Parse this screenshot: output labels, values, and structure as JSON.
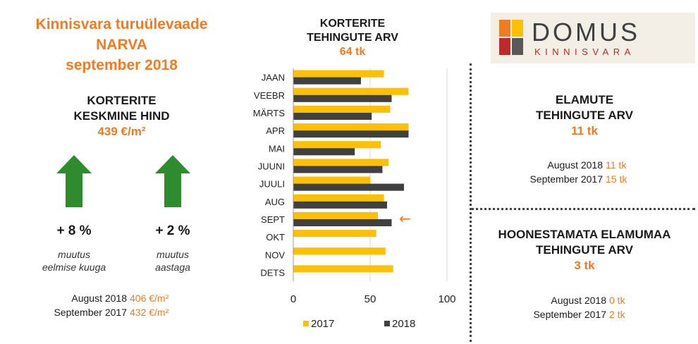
{
  "left": {
    "title_line1": "Kinnisvara turuülevaade",
    "title_line2": "NARVA",
    "title_line3": "september 2018",
    "avg_line1": "KORTERITE",
    "avg_line2": "KESKMINE HIND",
    "avg_value": "439 €/m²",
    "change_month": "+ 8 %",
    "change_month_note1": "muutus",
    "change_month_note2": "eelmise kuuga",
    "change_year": "+ 2 %",
    "change_year_note1": "muutus",
    "change_year_note2": "aastaga",
    "compare": [
      {
        "label": "August 2018",
        "value": "406 €/m²"
      },
      {
        "label": "September 2017",
        "value": "432 €/m²"
      }
    ],
    "arrow_color": "#2e8b2e"
  },
  "chart_header": {
    "line1": "KORTERITE",
    "line2": "TEHINGUTE ARV",
    "value": "64 tk"
  },
  "chart_data": {
    "type": "bar",
    "orientation": "horizontal",
    "categories": [
      "JAAN",
      "VEEBR",
      "MÄRTS",
      "APR",
      "MAI",
      "JUUNI",
      "JUULI",
      "AUG",
      "SEPT",
      "OKT",
      "NOV",
      "DETS"
    ],
    "series": [
      {
        "name": "2017",
        "color": "#ffc000",
        "values": [
          59,
          75,
          63,
          75,
          57,
          62,
          50,
          59,
          55,
          54,
          60,
          65
        ]
      },
      {
        "name": "2018",
        "color": "#404040",
        "values": [
          44,
          64,
          51,
          75,
          40,
          58,
          72,
          61,
          64,
          null,
          null,
          null
        ]
      }
    ],
    "xlim": [
      0,
      100
    ],
    "xticks": [
      0,
      50,
      100
    ],
    "grid": true,
    "legend": "bottom",
    "annotation": {
      "category": "SEPT",
      "symbol": "←",
      "color": "#f07b22"
    }
  },
  "logo": {
    "name": "DOMUS",
    "sub": "KINNISVARA",
    "colors": [
      "#f07b22",
      "#ffc000",
      "#c0292a",
      "#595959"
    ]
  },
  "houses": {
    "line1": "ELAMUTE",
    "line2": "TEHINGUTE ARV",
    "value": "11 tk",
    "compare": [
      {
        "label": "August 2018",
        "value": "11 tk"
      },
      {
        "label": "September 2017",
        "value": "15 tk"
      }
    ]
  },
  "land": {
    "line1": "HOONESTAMATA ELAMUMAA",
    "line2": "TEHINGUTE ARV",
    "value": "3 tk",
    "compare": [
      {
        "label": "August 2018",
        "value": "0 tk"
      },
      {
        "label": "September 2017",
        "value": "2 tk"
      }
    ]
  }
}
